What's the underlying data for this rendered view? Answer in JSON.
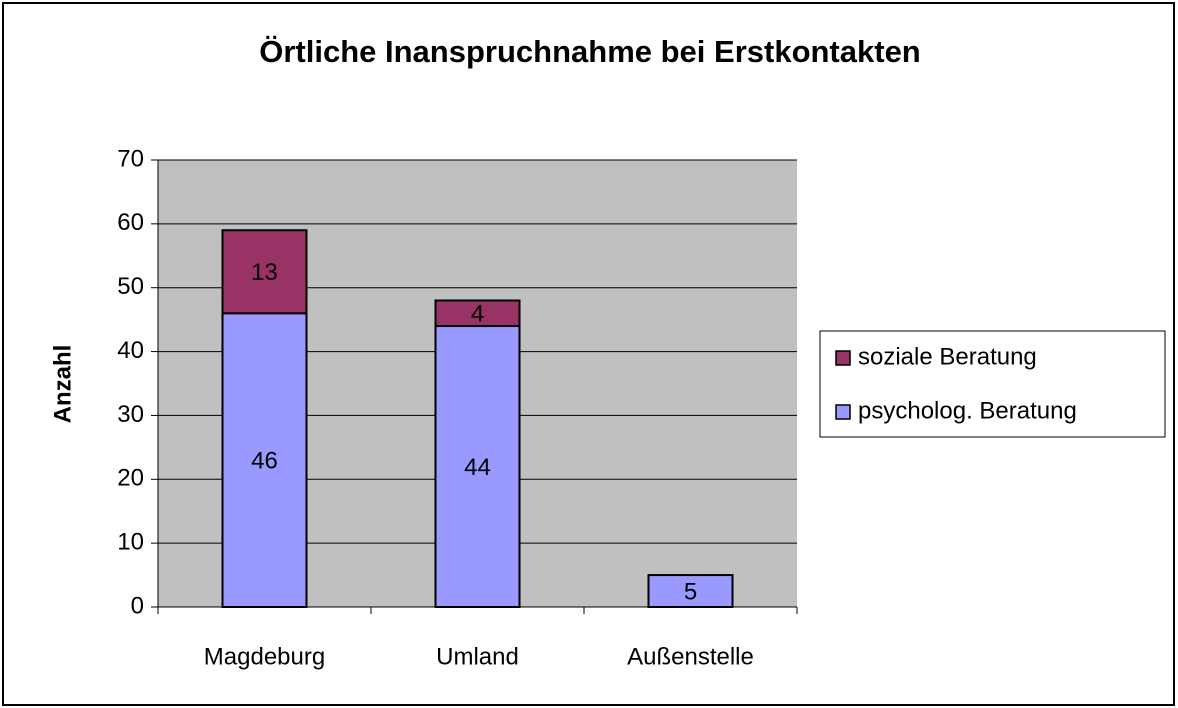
{
  "chart_data": {
    "type": "stacked_bar",
    "title": "Örtliche Inanspruchnahme bei Erstkontakten",
    "y_label": "Anzahl",
    "categories": [
      "Magdeburg",
      "Umland",
      "Außenstelle"
    ],
    "series": [
      {
        "name": "psycholog. Beratung",
        "color": "#9999ff",
        "values": [
          46,
          44,
          5
        ]
      },
      {
        "name": "soziale Beratung",
        "color": "#993366",
        "values": [
          13,
          4,
          null
        ]
      }
    ],
    "ylim": [
      0,
      70
    ],
    "yticks": [
      0,
      10,
      20,
      30,
      40,
      50,
      60,
      70
    ],
    "grid": true,
    "legend": "right"
  }
}
